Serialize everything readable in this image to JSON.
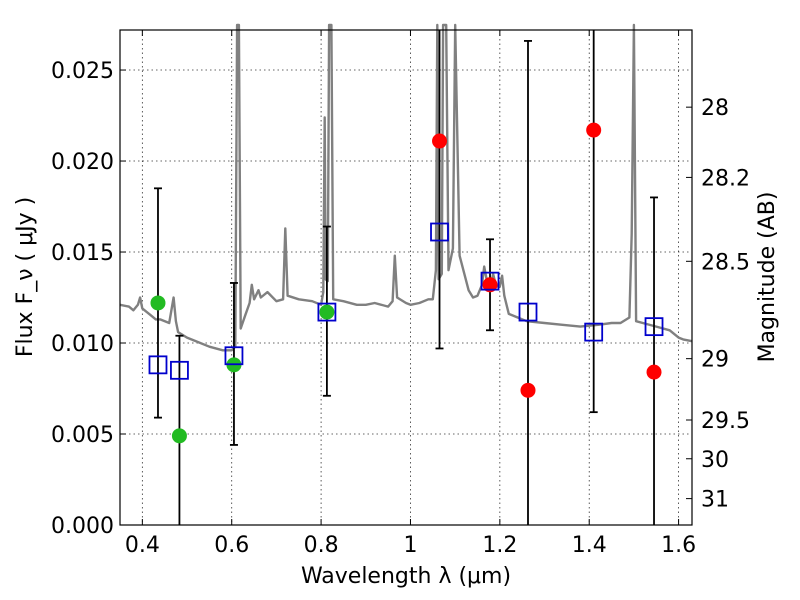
{
  "chart_data": {
    "type": "scatter",
    "xlabel": "Wavelength  λ (μm)",
    "ylabel": "Flux  F_ν  ( μJy )",
    "y2label": "Magnitude (AB)",
    "xlim": [
      0.35,
      1.63
    ],
    "ylim": [
      0,
      0.0272
    ],
    "x_ticks": [
      0.4,
      0.6,
      0.8,
      1.0,
      1.2,
      1.4,
      1.6
    ],
    "x_tick_labels": [
      "0.4",
      "0.6",
      "0.8",
      "1",
      "1.2",
      "1.4",
      "1.6"
    ],
    "y_ticks": [
      0,
      0.005,
      0.01,
      0.015,
      0.02,
      0.025
    ],
    "y_tick_labels": [
      "0.000",
      "0.005",
      "0.010",
      "0.015",
      "0.020",
      "0.025"
    ],
    "y2_ticks": [
      {
        "label": "28",
        "flux": 0.02296
      },
      {
        "label": "28.2",
        "flux": 0.0191
      },
      {
        "label": "28.5",
        "flux": 0.01449
      },
      {
        "label": "29",
        "flux": 0.00914
      },
      {
        "label": "29.5",
        "flux": 0.00577
      },
      {
        "label": "30",
        "flux": 0.00364
      },
      {
        "label": "31",
        "flux": 0.00145
      }
    ],
    "series": [
      {
        "name": "green-points",
        "color": "#22bb22",
        "marker": "circle",
        "points": [
          {
            "x": 0.435,
            "y": 0.0122
          },
          {
            "x": 0.483,
            "y": 0.0049
          },
          {
            "x": 0.605,
            "y": 0.0088
          },
          {
            "x": 0.813,
            "y": 0.0117
          }
        ]
      },
      {
        "name": "red-points",
        "color": "#ff0000",
        "marker": "circle",
        "points": [
          {
            "x": 1.065,
            "y": 0.0211
          },
          {
            "x": 1.178,
            "y": 0.0132
          },
          {
            "x": 1.263,
            "y": 0.0074
          },
          {
            "x": 1.41,
            "y": 0.0217
          },
          {
            "x": 1.545,
            "y": 0.0084
          }
        ]
      },
      {
        "name": "model-points",
        "color": "#0000cc",
        "marker": "open-square",
        "points": [
          {
            "x": 0.435,
            "y": 0.0088
          },
          {
            "x": 0.483,
            "y": 0.0085
          },
          {
            "x": 0.605,
            "y": 0.0093
          },
          {
            "x": 0.813,
            "y": 0.0117
          },
          {
            "x": 1.065,
            "y": 0.0161
          },
          {
            "x": 1.178,
            "y": 0.0134
          },
          {
            "x": 1.263,
            "y": 0.0117
          },
          {
            "x": 1.41,
            "y": 0.0106
          },
          {
            "x": 1.545,
            "y": 0.0109
          }
        ]
      }
    ],
    "error_bars": [
      {
        "x": 0.435,
        "low": 0.0059,
        "high": 0.0185
      },
      {
        "x": 0.483,
        "low": 0.0,
        "high": 0.0104
      },
      {
        "x": 0.605,
        "low": 0.0044,
        "high": 0.0133
      },
      {
        "x": 0.813,
        "low": 0.0071,
        "high": 0.0164
      },
      {
        "x": 1.065,
        "low": 0.0097,
        "high": 0.0272
      },
      {
        "x": 1.178,
        "low": 0.0107,
        "high": 0.0157
      },
      {
        "x": 1.263,
        "low": 0.0,
        "high": 0.0266
      },
      {
        "x": 1.41,
        "low": 0.0062,
        "high": 0.0272
      },
      {
        "x": 1.545,
        "low": 0.0,
        "high": 0.018
      }
    ],
    "spectrum": {
      "name": "model-spectrum",
      "color": "#808080",
      "points": [
        [
          0.35,
          0.0121
        ],
        [
          0.37,
          0.012
        ],
        [
          0.38,
          0.0118
        ],
        [
          0.39,
          0.0121
        ],
        [
          0.395,
          0.0125
        ],
        [
          0.4,
          0.0119
        ],
        [
          0.42,
          0.0115
        ],
        [
          0.43,
          0.0113
        ],
        [
          0.44,
          0.0113
        ],
        [
          0.46,
          0.0111
        ],
        [
          0.47,
          0.0125
        ],
        [
          0.475,
          0.0112
        ],
        [
          0.48,
          0.0106
        ],
        [
          0.5,
          0.0103
        ],
        [
          0.52,
          0.0101
        ],
        [
          0.55,
          0.0098
        ],
        [
          0.58,
          0.0096
        ],
        [
          0.6,
          0.0096
        ],
        [
          0.608,
          0.0098
        ],
        [
          0.612,
          0.028
        ],
        [
          0.616,
          0.028
        ],
        [
          0.62,
          0.0108
        ],
        [
          0.63,
          0.0115
        ],
        [
          0.64,
          0.0122
        ],
        [
          0.645,
          0.0132
        ],
        [
          0.65,
          0.0124
        ],
        [
          0.66,
          0.0129
        ],
        [
          0.665,
          0.0125
        ],
        [
          0.68,
          0.0128
        ],
        [
          0.7,
          0.0123
        ],
        [
          0.715,
          0.0124
        ],
        [
          0.72,
          0.0163
        ],
        [
          0.725,
          0.0126
        ],
        [
          0.75,
          0.0124
        ],
        [
          0.78,
          0.0123
        ],
        [
          0.8,
          0.0121
        ],
        [
          0.805,
          0.0128
        ],
        [
          0.808,
          0.0224
        ],
        [
          0.81,
          0.0135
        ],
        [
          0.815,
          0.0134
        ],
        [
          0.818,
          0.028
        ],
        [
          0.823,
          0.028
        ],
        [
          0.827,
          0.0124
        ],
        [
          0.85,
          0.0123
        ],
        [
          0.88,
          0.0121
        ],
        [
          0.9,
          0.0121
        ],
        [
          0.92,
          0.0122
        ],
        [
          0.95,
          0.012
        ],
        [
          0.96,
          0.0123
        ],
        [
          0.965,
          0.0148
        ],
        [
          0.97,
          0.0125
        ],
        [
          0.99,
          0.0122
        ],
        [
          1.0,
          0.0121
        ],
        [
          1.02,
          0.0122
        ],
        [
          1.04,
          0.0124
        ],
        [
          1.05,
          0.0124
        ],
        [
          1.057,
          0.014
        ],
        [
          1.06,
          0.028
        ],
        [
          1.063,
          0.0135
        ],
        [
          1.07,
          0.0138
        ],
        [
          1.073,
          0.028
        ],
        [
          1.08,
          0.028
        ],
        [
          1.085,
          0.014
        ],
        [
          1.095,
          0.0152
        ],
        [
          1.1,
          0.028
        ],
        [
          1.11,
          0.0148
        ],
        [
          1.13,
          0.0129
        ],
        [
          1.14,
          0.0125
        ],
        [
          1.15,
          0.0126
        ],
        [
          1.16,
          0.0132
        ],
        [
          1.165,
          0.0142
        ],
        [
          1.172,
          0.0133
        ],
        [
          1.175,
          0.0131
        ],
        [
          1.18,
          0.0131
        ],
        [
          1.185,
          0.0138
        ],
        [
          1.19,
          0.0133
        ],
        [
          1.195,
          0.0131
        ],
        [
          1.2,
          0.0131
        ],
        [
          1.205,
          0.0137
        ],
        [
          1.21,
          0.0126
        ],
        [
          1.22,
          0.0116
        ],
        [
          1.24,
          0.0114
        ],
        [
          1.26,
          0.0112
        ],
        [
          1.3,
          0.0111
        ],
        [
          1.34,
          0.011
        ],
        [
          1.38,
          0.0109
        ],
        [
          1.42,
          0.011
        ],
        [
          1.45,
          0.0111
        ],
        [
          1.47,
          0.0111
        ],
        [
          1.49,
          0.0114
        ],
        [
          1.495,
          0.016
        ],
        [
          1.5,
          0.028
        ],
        [
          1.505,
          0.0112
        ],
        [
          1.52,
          0.0111
        ],
        [
          1.55,
          0.0109
        ],
        [
          1.58,
          0.0107
        ],
        [
          1.6,
          0.0103
        ],
        [
          1.61,
          0.0102
        ],
        [
          1.63,
          0.0101
        ]
      ]
    }
  }
}
